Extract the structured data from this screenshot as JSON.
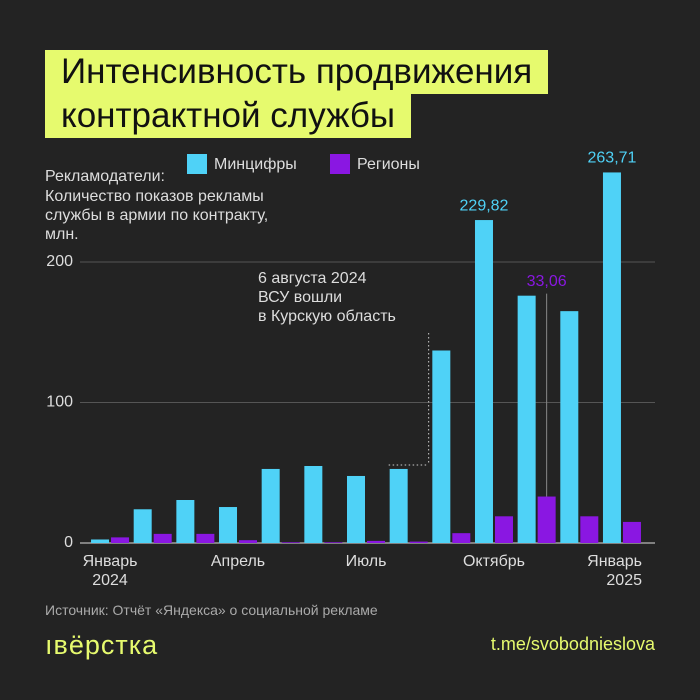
{
  "chart_data": {
    "type": "bar",
    "title": [
      "Интенсивность продвижения",
      "контрактной службы"
    ],
    "legend_title": "Рекламодатели:",
    "subtitle": [
      "Количество показов рекламы",
      "службы в армии по контракту,",
      "млн."
    ],
    "categories": [
      "Январь 2024",
      null,
      null,
      "Апрель",
      null,
      null,
      "Июль",
      null,
      null,
      "Октябрь",
      null,
      null,
      "Январь 2025"
    ],
    "series": [
      {
        "name": "Минцифры",
        "color": "#4fd2f7",
        "values": [
          2.5,
          24,
          30.6,
          25.6,
          52.7,
          54.8,
          47.7,
          52.7,
          137,
          229.82,
          176,
          165,
          263.71
        ],
        "value_labels": [
          null,
          null,
          null,
          null,
          null,
          null,
          null,
          null,
          null,
          "229,82",
          null,
          null,
          "263,71"
        ]
      },
      {
        "name": "Регионы",
        "color": "#8a17e2",
        "values": [
          4,
          6.5,
          6.5,
          2,
          0.5,
          0.5,
          1.5,
          1,
          7,
          19,
          33.06,
          19,
          15
        ],
        "value_labels": [
          null,
          null,
          null,
          null,
          null,
          null,
          null,
          null,
          null,
          null,
          "33,06",
          null,
          null
        ]
      }
    ],
    "ylim": [
      0,
      270
    ],
    "yticks": [
      0,
      100,
      200
    ],
    "grid": true,
    "annotation": {
      "lines": [
        "6 августа 2024",
        "ВСУ вошли",
        "в Курскую область"
      ],
      "category": 7
    },
    "source": "Источник: Отчёт «Яндекса» о социальной рекламе",
    "logo": "ıвёрстка",
    "footer": "t.me/svobodnieslova"
  }
}
